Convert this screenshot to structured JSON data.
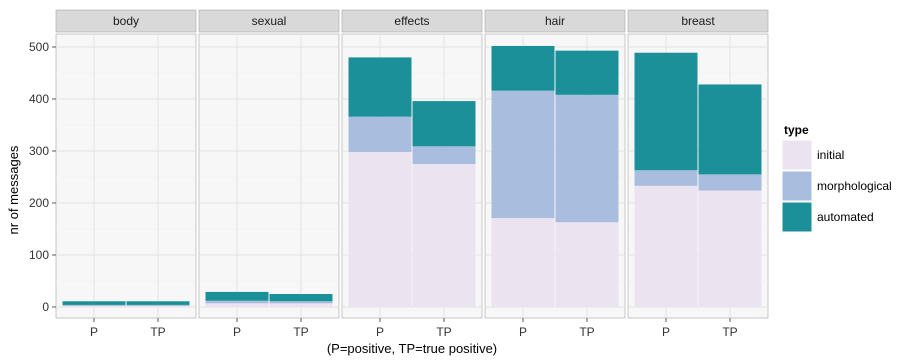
{
  "chart_data": {
    "type": "bar",
    "stacked": true,
    "facets": [
      "body",
      "sexual",
      "effects",
      "hair",
      "breast"
    ],
    "categories": [
      "P",
      "TP"
    ],
    "xlabel": "(P=positive, TP=true positive)",
    "ylabel": "nr of messages",
    "ylim": [
      0,
      520
    ],
    "yticks": [
      0,
      100,
      200,
      300,
      400,
      500
    ],
    "grid": true,
    "legend": {
      "title": "type",
      "position": "right",
      "entries": [
        "initial",
        "morphological",
        "automated"
      ]
    },
    "colors": {
      "initial": "#ebe3f0",
      "morphological": "#a9bedf",
      "automated": "#1c9099",
      "panel_bg": "#f7f7f7",
      "grid": "#e6e6e6",
      "strip_bg": "#d9d9d9"
    },
    "series": [
      {
        "name": "initial",
        "values": {
          "body": [
            2,
            2
          ],
          "sexual": [
            7,
            7
          ],
          "effects": [
            298,
            275
          ],
          "hair": [
            171,
            163
          ],
          "breast": [
            233,
            224
          ]
        }
      },
      {
        "name": "morphological",
        "values": {
          "body": [
            2,
            2
          ],
          "sexual": [
            5,
            4
          ],
          "effects": [
            68,
            34
          ],
          "hair": [
            245,
            245
          ],
          "breast": [
            30,
            31
          ]
        }
      },
      {
        "name": "automated",
        "values": {
          "body": [
            7,
            7
          ],
          "sexual": [
            17,
            14
          ],
          "effects": [
            114,
            87
          ],
          "hair": [
            86,
            85
          ],
          "breast": [
            226,
            173
          ]
        }
      }
    ]
  }
}
